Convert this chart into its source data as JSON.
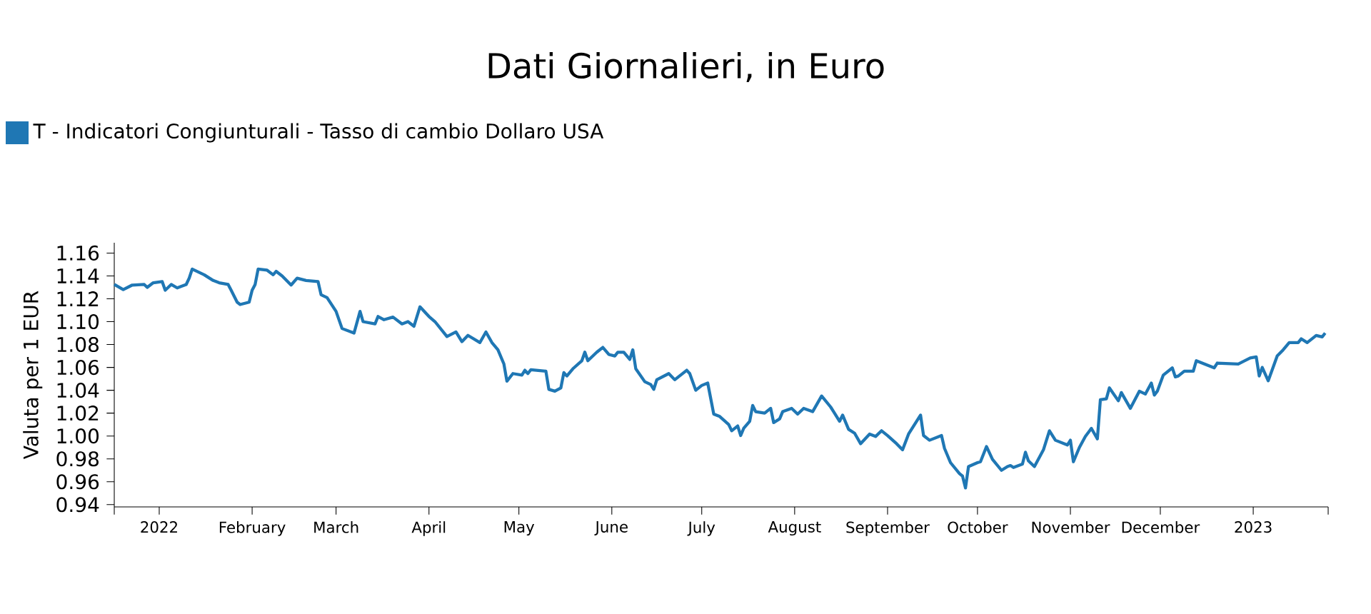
{
  "chart_data": {
    "type": "line",
    "title": "Dati Giornalieri, in Euro",
    "ylabel": "Valuta per 1 EUR",
    "legend": "top left",
    "grid": false,
    "marker": "none",
    "line_style": "solid",
    "xlim": [
      "2021-12-17",
      "2023-01-26"
    ],
    "ylim": [
      0.938,
      1.169
    ],
    "xticks": [
      {
        "value": "2021-12-17",
        "label": null
      },
      {
        "value": "2022-01-01",
        "label": "2022"
      },
      {
        "value": "2022-02-01",
        "label": "February"
      },
      {
        "value": "2022-03-01",
        "label": "March"
      },
      {
        "value": "2022-04-01",
        "label": "April"
      },
      {
        "value": "2022-05-01",
        "label": "May"
      },
      {
        "value": "2022-06-01",
        "label": "June"
      },
      {
        "value": "2022-07-01",
        "label": "July"
      },
      {
        "value": "2022-08-01",
        "label": "August"
      },
      {
        "value": "2022-09-01",
        "label": "September"
      },
      {
        "value": "2022-10-01",
        "label": "October"
      },
      {
        "value": "2022-11-01",
        "label": "November"
      },
      {
        "value": "2022-12-01",
        "label": "December"
      },
      {
        "value": "2023-01-01",
        "label": "2023"
      },
      {
        "value": "2023-01-26",
        "label": null
      }
    ],
    "yticks": [
      0.94,
      0.96,
      0.98,
      {
        "value": 1.0,
        "label": "1.00"
      },
      1.02,
      1.04,
      1.06,
      1.08,
      {
        "value": 1.1,
        "label": "1.10"
      },
      1.12,
      1.14,
      1.16
    ],
    "x": [
      "2021-12-17",
      "2021-12-20",
      "2021-12-23",
      "2021-12-27",
      "2021-12-28",
      "2021-12-30",
      "2022-01-02",
      "2022-01-03",
      "2022-01-05",
      "2022-01-07",
      "2022-01-10",
      "2022-01-11",
      "2022-01-12",
      "2022-01-16",
      "2022-01-19",
      "2022-01-21",
      "2022-01-24",
      "2022-01-25",
      "2022-01-27",
      "2022-01-28",
      "2022-01-31",
      "2022-02-01",
      "2022-02-02",
      "2022-02-03",
      "2022-02-06",
      "2022-02-08",
      "2022-02-09",
      "2022-02-11",
      "2022-02-14",
      "2022-02-16",
      "2022-02-19",
      "2022-02-23",
      "2022-02-24",
      "2022-02-26",
      "2022-03-01",
      "2022-03-03",
      "2022-03-07",
      "2022-03-09",
      "2022-03-10",
      "2022-03-14",
      "2022-03-15",
      "2022-03-17",
      "2022-03-20",
      "2022-03-23",
      "2022-03-25",
      "2022-03-27",
      "2022-03-29",
      "2022-04-01",
      "2022-04-03",
      "2022-04-07",
      "2022-04-10",
      "2022-04-12",
      "2022-04-14",
      "2022-04-18",
      "2022-04-20",
      "2022-04-22",
      "2022-04-24",
      "2022-04-26",
      "2022-04-27",
      "2022-04-29",
      "2022-05-02",
      "2022-05-03",
      "2022-05-04",
      "2022-05-05",
      "2022-05-10",
      "2022-05-11",
      "2022-05-13",
      "2022-05-15",
      "2022-05-16",
      "2022-05-17",
      "2022-05-19",
      "2022-05-22",
      "2022-05-23",
      "2022-05-24",
      "2022-05-27",
      "2022-05-29",
      "2022-05-31",
      "2022-06-02",
      "2022-06-03",
      "2022-06-05",
      "2022-06-07",
      "2022-06-08",
      "2022-06-09",
      "2022-06-12",
      "2022-06-14",
      "2022-06-15",
      "2022-06-16",
      "2022-06-20",
      "2022-06-22",
      "2022-06-26",
      "2022-06-27",
      "2022-06-29",
      "2022-07-01",
      "2022-07-03",
      "2022-07-05",
      "2022-07-07",
      "2022-07-10",
      "2022-07-11",
      "2022-07-13",
      "2022-07-14",
      "2022-07-15",
      "2022-07-17",
      "2022-07-18",
      "2022-07-19",
      "2022-07-22",
      "2022-07-24",
      "2022-07-25",
      "2022-07-27",
      "2022-07-28",
      "2022-07-31",
      "2022-08-02",
      "2022-08-04",
      "2022-08-07",
      "2022-08-10",
      "2022-08-13",
      "2022-08-14",
      "2022-08-16",
      "2022-08-17",
      "2022-08-19",
      "2022-08-21",
      "2022-08-23",
      "2022-08-26",
      "2022-08-28",
      "2022-08-30",
      "2022-09-01",
      "2022-09-04",
      "2022-09-06",
      "2022-09-08",
      "2022-09-12",
      "2022-09-13",
      "2022-09-15",
      "2022-09-19",
      "2022-09-20",
      "2022-09-22",
      "2022-09-25",
      "2022-09-26",
      "2022-09-27",
      "2022-09-28",
      "2022-10-01",
      "2022-10-02",
      "2022-10-04",
      "2022-10-06",
      "2022-10-09",
      "2022-10-11",
      "2022-10-12",
      "2022-10-13",
      "2022-10-16",
      "2022-10-17",
      "2022-10-18",
      "2022-10-20",
      "2022-10-23",
      "2022-10-25",
      "2022-10-27",
      "2022-10-31",
      "2022-11-01",
      "2022-11-02",
      "2022-11-04",
      "2022-11-06",
      "2022-11-08",
      "2022-11-10",
      "2022-11-11",
      "2022-11-13",
      "2022-11-14",
      "2022-11-17",
      "2022-11-18",
      "2022-11-21",
      "2022-11-24",
      "2022-11-26",
      "2022-11-28",
      "2022-11-29",
      "2022-11-30",
      "2022-12-02",
      "2022-12-05",
      "2022-12-06",
      "2022-12-07",
      "2022-12-09",
      "2022-12-12",
      "2022-12-13",
      "2022-12-19",
      "2022-12-20",
      "2022-12-27",
      "2022-12-31",
      "2023-01-02",
      "2023-01-03",
      "2023-01-04",
      "2023-01-06",
      "2023-01-09",
      "2023-01-11",
      "2023-01-13",
      "2023-01-16",
      "2023-01-17",
      "2023-01-19",
      "2023-01-22",
      "2023-01-24",
      "2023-01-25"
    ],
    "series": [
      {
        "name": "T - Indicatori Congiunturali - Tasso di cambio Dollaro USA",
        "color": "#1f77b4",
        "values": [
          1.1325,
          1.128,
          1.132,
          1.1325,
          1.13,
          1.134,
          1.135,
          1.1275,
          1.1325,
          1.1295,
          1.1325,
          1.138,
          1.146,
          1.141,
          1.136,
          1.134,
          1.1325,
          1.1275,
          1.117,
          1.115,
          1.117,
          1.1275,
          1.1325,
          1.146,
          1.145,
          1.141,
          1.144,
          1.14,
          1.132,
          1.138,
          1.136,
          1.135,
          1.1235,
          1.121,
          1.109,
          1.094,
          1.09,
          1.109,
          1.1,
          1.098,
          1.1045,
          1.1017,
          1.104,
          1.098,
          1.1,
          1.096,
          1.113,
          1.1045,
          1.1,
          1.087,
          1.091,
          1.0825,
          1.088,
          1.0817,
          1.091,
          1.0817,
          1.0754,
          1.063,
          1.048,
          1.0546,
          1.0533,
          1.0575,
          1.0546,
          1.058,
          1.0567,
          1.0408,
          1.0392,
          1.0421,
          1.0554,
          1.0525,
          1.0588,
          1.0658,
          1.0733,
          1.0658,
          1.0733,
          1.0775,
          1.0713,
          1.07,
          1.0733,
          1.0733,
          1.067,
          1.0754,
          1.0588,
          1.0475,
          1.045,
          1.0408,
          1.0492,
          1.0546,
          1.0492,
          1.0575,
          1.0546,
          1.04,
          1.0442,
          1.0463,
          1.0192,
          1.0171,
          1.01,
          1.0046,
          1.0088,
          1.0004,
          1.0067,
          1.0129,
          1.0267,
          1.0213,
          1.02,
          1.0242,
          1.0117,
          1.015,
          1.0213,
          1.0242,
          1.0192,
          1.0242,
          1.0213,
          1.035,
          1.0254,
          1.0213,
          1.0129,
          1.0183,
          1.0058,
          1.0025,
          0.9933,
          1.0017,
          0.9996,
          1.0046,
          1.0004,
          0.9933,
          0.9879,
          1.0017,
          1.0183,
          1.0004,
          0.9963,
          1.0004,
          0.9892,
          0.9767,
          0.9671,
          0.965,
          0.9546,
          0.9733,
          0.9767,
          0.9775,
          0.9908,
          0.9796,
          0.97,
          0.9733,
          0.9742,
          0.9725,
          0.9754,
          0.9858,
          0.9783,
          0.9733,
          0.9879,
          1.0046,
          0.9963,
          0.9921,
          0.9963,
          0.9775,
          0.99,
          0.9996,
          1.0067,
          0.9975,
          1.0317,
          1.0325,
          1.0421,
          1.0308,
          1.038,
          1.0242,
          1.0392,
          1.0367,
          1.0463,
          1.0358,
          1.0392,
          1.0533,
          1.0596,
          1.0517,
          1.0525,
          1.0567,
          1.0567,
          1.0658,
          1.0596,
          1.0638,
          1.063,
          1.0683,
          1.0692,
          1.0525,
          1.06,
          1.0483,
          1.07,
          1.0754,
          1.0817,
          1.0817,
          1.085,
          1.0817,
          1.0879,
          1.0867,
          1.09
        ]
      }
    ]
  }
}
